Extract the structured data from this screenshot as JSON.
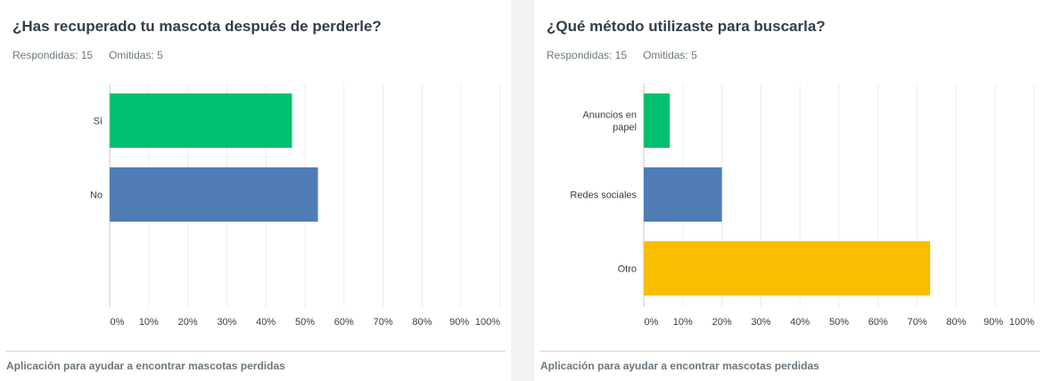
{
  "panels": [
    {
      "title": "¿Has recuperado tu mascota después de perderle?",
      "answered_label": "Respondidas: 15",
      "skipped_label": "Omitidas: 5",
      "footer": "Aplicación para ayudar a encontrar mascotas perdidas"
    },
    {
      "title": "¿Qué método utilizaste para buscarla?",
      "answered_label": "Respondidas: 15",
      "skipped_label": "Omitidas: 5",
      "footer": "Aplicación para ayudar a encontrar mascotas perdidas"
    }
  ],
  "chart_data": [
    {
      "type": "bar",
      "orientation": "horizontal",
      "categories": [
        "Sí",
        "No"
      ],
      "values": [
        46.67,
        53.33
      ],
      "colors": [
        "#00bf6f",
        "#507cb6"
      ],
      "xlim": [
        0,
        100
      ],
      "ticks": [
        "0%",
        "10%",
        "20%",
        "30%",
        "40%",
        "50%",
        "60%",
        "70%",
        "80%",
        "90%",
        "100%"
      ],
      "grid": true
    },
    {
      "type": "bar",
      "orientation": "horizontal",
      "categories": [
        [
          "Anuncios en",
          "papel"
        ],
        [
          "Redes sociales"
        ],
        [
          "Otro"
        ]
      ],
      "values": [
        6.67,
        20.0,
        73.33
      ],
      "colors": [
        "#00bf6f",
        "#507cb6",
        "#f9be00"
      ],
      "xlim": [
        0,
        100
      ],
      "ticks": [
        "0%",
        "10%",
        "20%",
        "30%",
        "40%",
        "50%",
        "60%",
        "70%",
        "80%",
        "90%",
        "100%"
      ],
      "grid": true
    }
  ]
}
